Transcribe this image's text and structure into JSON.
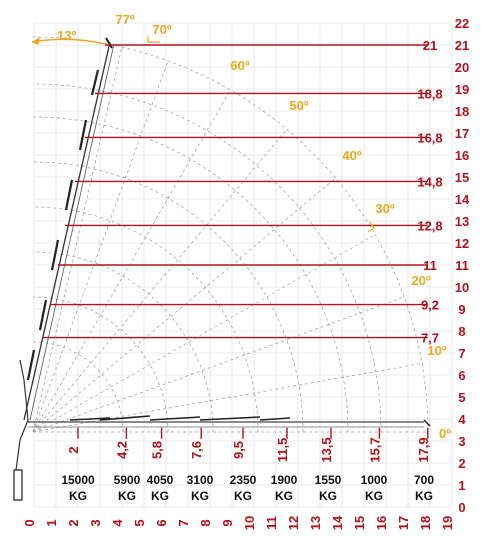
{
  "height_axis_labels": [
    "0",
    "1",
    "2",
    "3",
    "4",
    "5",
    "6",
    "7",
    "8",
    "9",
    "10",
    "11",
    "12",
    "13",
    "14",
    "15",
    "16",
    "17",
    "18",
    "19",
    "20",
    "21",
    "22"
  ],
  "reach_axis_labels": [
    "0",
    "1",
    "2",
    "3",
    "4",
    "5",
    "6",
    "7",
    "8",
    "9",
    "10",
    "11",
    "12",
    "13",
    "14",
    "15",
    "16",
    "17",
    "18",
    "19"
  ],
  "reach_marks": [
    "2",
    "4,2",
    "5,8",
    "7,6",
    "9,5",
    "11,5",
    "13,5",
    "15,7",
    "17,9"
  ],
  "height_marks": [
    "21",
    "18,8",
    "16,8",
    "14,8",
    "12,8",
    "11",
    "9,2",
    "7,7"
  ],
  "angle_labels": [
    "77º",
    "70º",
    "60º",
    "50º",
    "40º",
    "30º",
    "20º",
    "10º",
    "0º"
  ],
  "boom_tilt_label": "13º",
  "load_values": [
    "15000",
    "5900",
    "4050",
    "3100",
    "2350",
    "1900",
    "1550",
    "1000",
    "700"
  ],
  "load_unit": "KG",
  "colors": {
    "red": "#b5121b",
    "orange": "#f2a81d",
    "grid": "#d9d9d9",
    "arc": "#9a9a9a"
  }
}
